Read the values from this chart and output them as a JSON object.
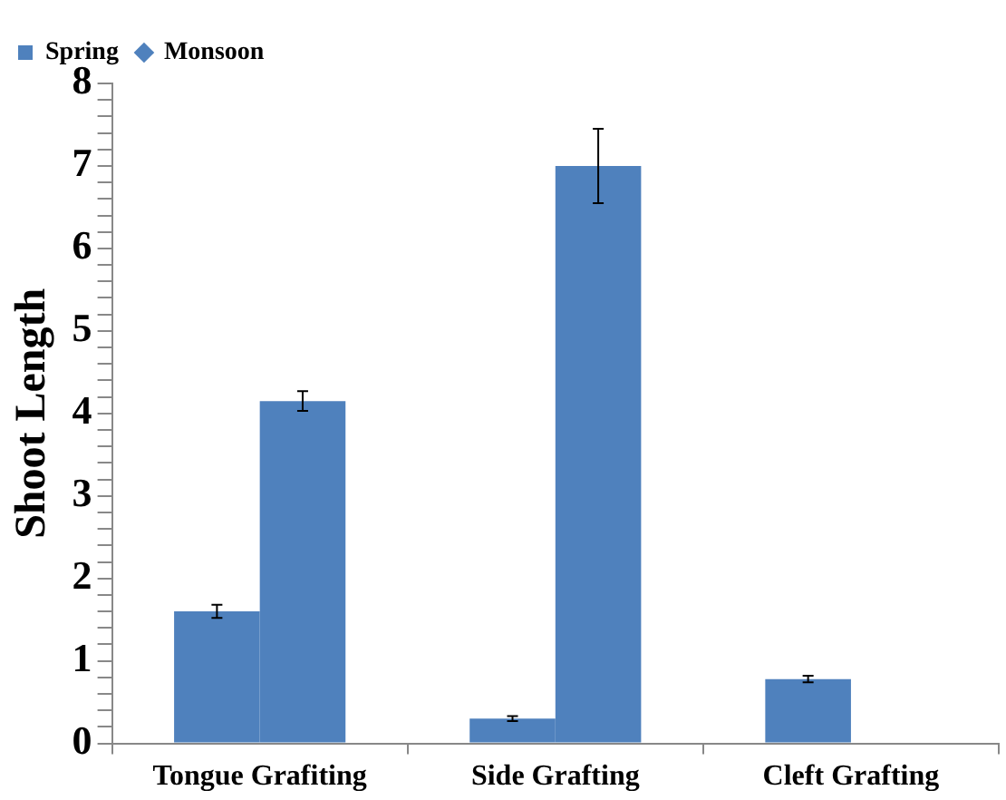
{
  "chart_data": {
    "type": "bar",
    "ylabel": "Shoot Length",
    "categories": [
      "Tongue Grafiting",
      "Side Grafting",
      "Cleft Grafting"
    ],
    "series": [
      {
        "name": "Spring",
        "color": "#4f81bd",
        "values": [
          1.6,
          0.3,
          0.78
        ],
        "errors": [
          0.08,
          0.03,
          0.04
        ]
      },
      {
        "name": "Monsoon",
        "color": "#4f81bd",
        "values": [
          4.15,
          7.0,
          null
        ],
        "errors": [
          0.12,
          0.45,
          null
        ]
      }
    ],
    "ylim": [
      0,
      8
    ],
    "yticks": [
      0,
      {
        "value": 0.2,
        "label": null
      },
      {
        "value": 0.4,
        "label": null
      },
      {
        "value": 0.6,
        "label": null
      },
      {
        "value": 0.8,
        "label": null
      },
      1,
      {
        "value": 1.2,
        "label": null
      },
      {
        "value": 1.4,
        "label": null
      },
      {
        "value": 1.6,
        "label": null
      },
      {
        "value": 1.8,
        "label": null
      },
      2,
      {
        "value": 2.2,
        "label": null
      },
      {
        "value": 2.4,
        "label": null
      },
      {
        "value": 2.6,
        "label": null
      },
      {
        "value": 2.8,
        "label": null
      },
      3,
      {
        "value": 3.2,
        "label": null
      },
      {
        "value": 3.4,
        "label": null
      },
      {
        "value": 3.6,
        "label": null
      },
      {
        "value": 3.8,
        "label": null
      },
      4,
      {
        "value": 4.2,
        "label": null
      },
      {
        "value": 4.4,
        "label": null
      },
      {
        "value": 4.6,
        "label": null
      },
      {
        "value": 4.8,
        "label": null
      },
      5,
      {
        "value": 5.2,
        "label": null
      },
      {
        "value": 5.4,
        "label": null
      },
      {
        "value": 5.6,
        "label": null
      },
      {
        "value": 5.8,
        "label": null
      },
      6,
      {
        "value": 6.2,
        "label": null
      },
      {
        "value": 6.4,
        "label": null
      },
      {
        "value": 6.6,
        "label": null
      },
      {
        "value": 6.8,
        "label": null
      },
      7,
      {
        "value": 7.2,
        "label": null
      },
      {
        "value": 7.4,
        "label": null
      },
      {
        "value": 7.6,
        "label": null
      },
      {
        "value": 7.8,
        "label": null
      },
      8
    ],
    "grid": false,
    "legend": "top left"
  }
}
